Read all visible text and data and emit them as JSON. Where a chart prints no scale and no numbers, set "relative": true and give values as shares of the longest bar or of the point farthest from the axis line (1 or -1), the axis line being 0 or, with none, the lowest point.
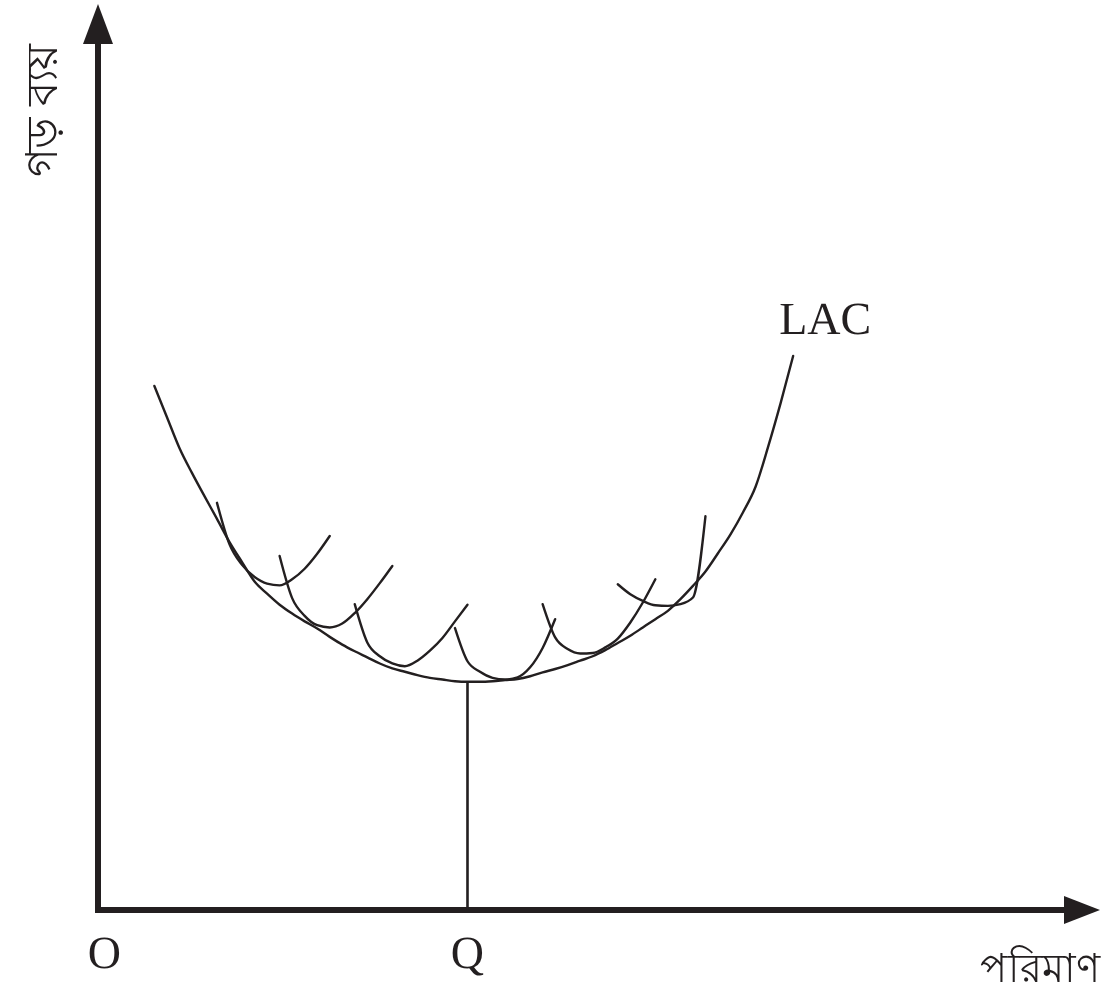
{
  "chart_data": {
    "type": "line",
    "relative": true,
    "xlabel": "পরিমাণ",
    "ylabel": "গড় ব্যয়",
    "categories": [
      "O",
      null,
      null,
      null,
      null,
      null,
      null,
      null,
      null,
      null,
      null,
      null,
      null,
      null,
      null,
      null,
      null,
      null,
      null,
      null,
      null,
      null,
      null,
      null,
      null,
      null,
      null,
      null,
      null,
      "Q",
      null,
      null,
      null,
      null,
      null,
      null,
      null,
      null,
      null,
      null,
      null,
      null,
      null,
      null,
      null,
      null,
      null,
      null,
      null,
      null,
      null,
      null,
      null,
      null,
      null,
      null,
      null,
      null,
      null,
      null,
      null,
      null,
      null,
      null,
      null,
      null,
      null,
      null,
      null,
      null,
      null,
      null,
      null,
      null,
      null,
      null,
      null,
      null,
      null,
      null
    ],
    "series": [
      {
        "name": "LAC",
        "color": "#231f20",
        "values": [
          null,
          null,
          null,
          null,
          0.946,
          0.89,
          0.834,
          0.789,
          0.747,
          0.706,
          0.664,
          0.628,
          0.593,
          0.571,
          0.551,
          0.535,
          0.521,
          0.508,
          0.493,
          0.479,
          0.467,
          0.456,
          0.445,
          0.436,
          0.43,
          0.424,
          0.419,
          0.416,
          0.413,
          0.412,
          0.412,
          0.413,
          0.415,
          0.417,
          0.422,
          0.429,
          0.435,
          0.442,
          0.45,
          0.458,
          0.469,
          0.482,
          0.495,
          0.51,
          0.525,
          0.54,
          0.561,
          0.585,
          0.611,
          0.644,
          0.678,
          0.718,
          0.764,
          0.836,
          0.915,
          1,
          null,
          null,
          null,
          null,
          null,
          null,
          null,
          null,
          null,
          null,
          null,
          null,
          null,
          null,
          null,
          null,
          null,
          null,
          null,
          null,
          null,
          null,
          null,
          null
        ]
      },
      {
        "color": "#231f20",
        "values": [
          null,
          null,
          null,
          null,
          null,
          null,
          null,
          null,
          null,
          0.735,
          0.66,
          0.623,
          0.601,
          0.589,
          0.586,
          0.597,
          0.616,
          0.643,
          0.675,
          null,
          null,
          null,
          null,
          null,
          null,
          null,
          null,
          null,
          null,
          null,
          null,
          null,
          null,
          null,
          null,
          null,
          null,
          null,
          null,
          null,
          null,
          null,
          null,
          null,
          null,
          null,
          null,
          null,
          null,
          null,
          null,
          null,
          null,
          null,
          null,
          null,
          null,
          null,
          null,
          null,
          null,
          null,
          null,
          null,
          null,
          null,
          null,
          null,
          null,
          null,
          null,
          null,
          null,
          null,
          null,
          null,
          null,
          null,
          null,
          null
        ]
      },
      {
        "color": "#231f20",
        "values": [
          null,
          null,
          null,
          null,
          null,
          null,
          null,
          null,
          null,
          null,
          null,
          null,
          null,
          null,
          0.639,
          0.563,
          0.531,
          0.514,
          0.51,
          0.517,
          0.536,
          0.561,
          0.59,
          0.621,
          null,
          null,
          null,
          null,
          null,
          null,
          null,
          null,
          null,
          null,
          null,
          null,
          null,
          null,
          null,
          null,
          null,
          null,
          null,
          null,
          null,
          null,
          null,
          null,
          null,
          null,
          null,
          null,
          null,
          null,
          null,
          null,
          null,
          null,
          null,
          null,
          null,
          null,
          null,
          null,
          null,
          null,
          null,
          null,
          null,
          null,
          null,
          null,
          null,
          null,
          null,
          null,
          null,
          null,
          null,
          null
        ]
      },
      {
        "color": "#231f20",
        "values": [
          null,
          null,
          null,
          null,
          null,
          null,
          null,
          null,
          null,
          null,
          null,
          null,
          null,
          null,
          null,
          null,
          null,
          null,
          null,
          null,
          0.552,
          0.483,
          0.458,
          0.445,
          0.44,
          0.45,
          0.468,
          0.491,
          0.521,
          0.551,
          null,
          null,
          null,
          null,
          null,
          null,
          null,
          null,
          null,
          null,
          null,
          null,
          null,
          null,
          null,
          null,
          null,
          null,
          null,
          null,
          null,
          null,
          null,
          null,
          null,
          null,
          null,
          null,
          null,
          null,
          null,
          null,
          null,
          null,
          null,
          null,
          null,
          null,
          null,
          null,
          null,
          null,
          null,
          null,
          null,
          null,
          null,
          null,
          null,
          null
        ]
      },
      {
        "color": "#231f20",
        "values": [
          null,
          null,
          null,
          null,
          null,
          null,
          null,
          null,
          null,
          null,
          null,
          null,
          null,
          null,
          null,
          null,
          null,
          null,
          null,
          null,
          null,
          null,
          null,
          null,
          null,
          null,
          null,
          null,
          0.509,
          0.449,
          0.43,
          0.419,
          0.416,
          0.42,
          0.438,
          0.473,
          0.525,
          null,
          null,
          null,
          null,
          null,
          null,
          null,
          null,
          null,
          null,
          null,
          null,
          null,
          null,
          null,
          null,
          null,
          null,
          null,
          null,
          null,
          null,
          null,
          null,
          null,
          null,
          null,
          null,
          null,
          null,
          null,
          null,
          null,
          null,
          null,
          null,
          null,
          null,
          null,
          null,
          null,
          null,
          null
        ]
      },
      {
        "color": "#231f20",
        "values": [
          null,
          null,
          null,
          null,
          null,
          null,
          null,
          null,
          null,
          null,
          null,
          null,
          null,
          null,
          null,
          null,
          null,
          null,
          null,
          null,
          null,
          null,
          null,
          null,
          null,
          null,
          null,
          null,
          null,
          null,
          null,
          null,
          null,
          null,
          null,
          0.552,
          0.492,
          0.471,
          0.463,
          0.464,
          0.474,
          0.49,
          0.519,
          0.555,
          0.597,
          null,
          null,
          null,
          null,
          null,
          null,
          null,
          null,
          null,
          null,
          null,
          null,
          null,
          null,
          null,
          null,
          null,
          null,
          null,
          null,
          null,
          null,
          null,
          null,
          null,
          null,
          null,
          null,
          null,
          null,
          null,
          null,
          null,
          null,
          null
        ]
      },
      {
        "color": "#231f20",
        "values": [
          null,
          null,
          null,
          null,
          null,
          null,
          null,
          null,
          null,
          null,
          null,
          null,
          null,
          null,
          null,
          null,
          null,
          null,
          null,
          null,
          null,
          null,
          null,
          null,
          null,
          null,
          null,
          null,
          null,
          null,
          null,
          null,
          null,
          null,
          null,
          null,
          null,
          null,
          null,
          null,
          null,
          0.588,
          0.57,
          0.558,
          0.55,
          0.549,
          0.552,
          0.564,
          0.711,
          null,
          null,
          null,
          null,
          null,
          null,
          null,
          null,
          null,
          null,
          null,
          null,
          null,
          null,
          null,
          null,
          null,
          null,
          null,
          null,
          null,
          null,
          null,
          null,
          null,
          null,
          null,
          null,
          null,
          null,
          null
        ]
      },
      {
        "type": "bar",
        "color": "#231f20",
        "values": [
          null,
          null,
          null,
          null,
          null,
          null,
          null,
          null,
          null,
          null,
          null,
          null,
          null,
          null,
          null,
          null,
          null,
          null,
          null,
          null,
          null,
          null,
          null,
          null,
          null,
          null,
          null,
          null,
          null,
          0.412,
          null,
          null,
          null,
          null,
          null,
          null,
          null,
          null,
          null,
          null,
          null,
          null,
          null,
          null,
          null,
          null,
          null,
          null,
          null,
          null,
          null,
          null,
          null,
          null,
          null,
          null,
          null,
          null,
          null,
          null,
          null,
          null,
          null,
          null,
          null,
          null,
          null,
          null,
          null,
          null,
          null,
          null,
          null,
          null,
          null,
          null,
          null,
          null,
          null,
          null
        ]
      }
    ]
  }
}
